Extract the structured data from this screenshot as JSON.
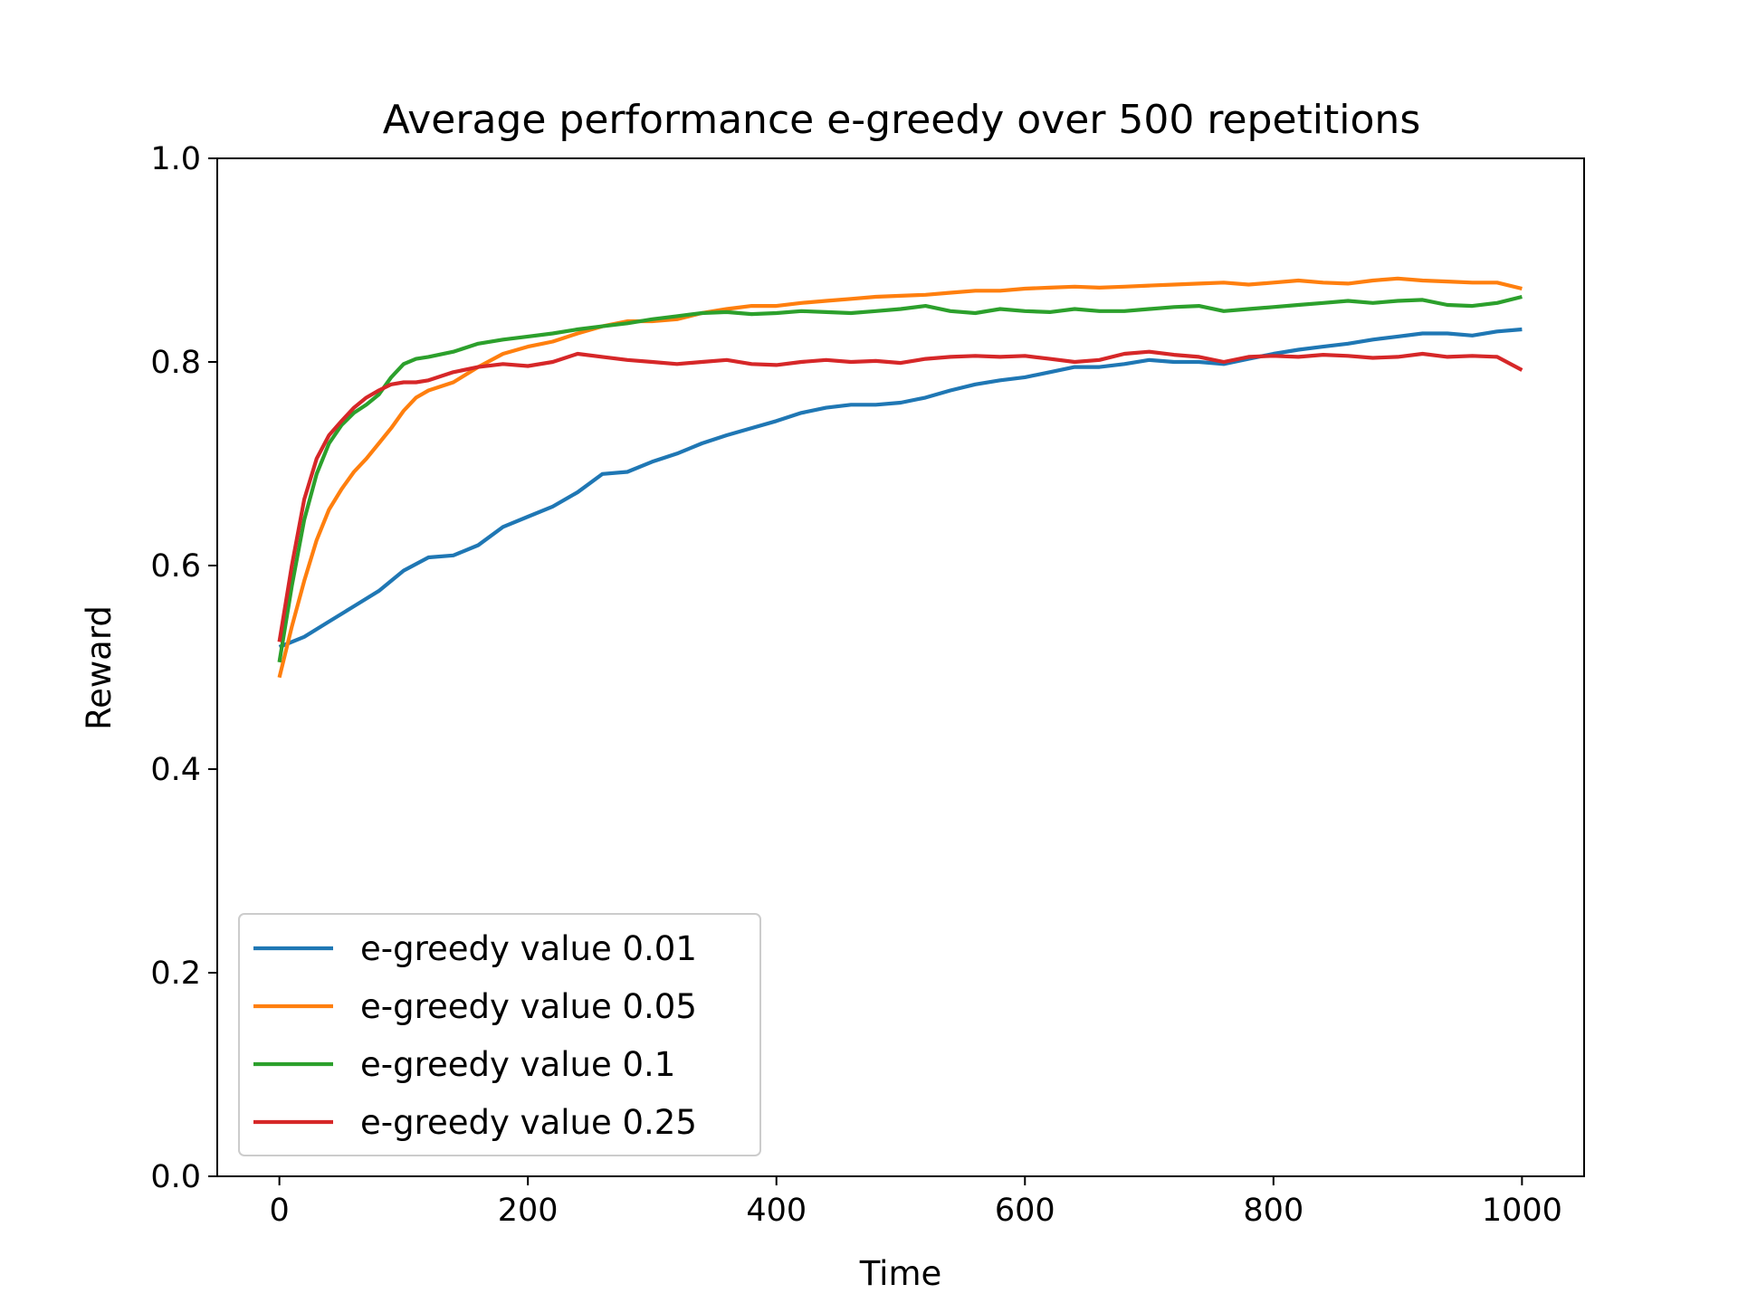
{
  "chart_data": {
    "type": "line",
    "title": "Average performance e-greedy over 500 repetitions",
    "xlabel": "Time",
    "ylabel": "Reward",
    "xlim": [
      -50,
      1050
    ],
    "ylim": [
      0.0,
      1.0
    ],
    "xticks": [
      0,
      200,
      400,
      600,
      800,
      1000
    ],
    "yticks": [
      0.0,
      0.2,
      0.4,
      0.6,
      0.8,
      1.0
    ],
    "xtick_labels": [
      "0",
      "200",
      "400",
      "600",
      "800",
      "1000"
    ],
    "ytick_labels": [
      "0.0",
      "0.2",
      "0.4",
      "0.6",
      "0.8",
      "1.0"
    ],
    "grid": false,
    "legend_position": "lower-left",
    "series": [
      {
        "name": "e-greedy value 0.01",
        "color": "#1f77b4",
        "x": [
          0,
          20,
          40,
          60,
          80,
          100,
          120,
          140,
          160,
          180,
          200,
          220,
          240,
          260,
          280,
          300,
          320,
          340,
          360,
          380,
          400,
          420,
          440,
          460,
          480,
          500,
          520,
          540,
          560,
          580,
          600,
          620,
          640,
          660,
          680,
          700,
          720,
          740,
          760,
          780,
          800,
          820,
          840,
          860,
          880,
          900,
          920,
          940,
          960,
          980,
          1000
        ],
        "y": [
          0.52,
          0.53,
          0.545,
          0.56,
          0.575,
          0.595,
          0.608,
          0.61,
          0.62,
          0.638,
          0.648,
          0.658,
          0.672,
          0.69,
          0.692,
          0.702,
          0.71,
          0.72,
          0.728,
          0.735,
          0.742,
          0.75,
          0.755,
          0.758,
          0.758,
          0.76,
          0.765,
          0.772,
          0.778,
          0.782,
          0.785,
          0.79,
          0.795,
          0.795,
          0.798,
          0.802,
          0.8,
          0.8,
          0.798,
          0.803,
          0.808,
          0.812,
          0.815,
          0.818,
          0.822,
          0.825,
          0.828,
          0.828,
          0.826,
          0.83,
          0.832
        ]
      },
      {
        "name": "e-greedy value 0.05",
        "color": "#ff7f0e",
        "x": [
          0,
          10,
          20,
          30,
          40,
          50,
          60,
          70,
          80,
          90,
          100,
          110,
          120,
          140,
          160,
          180,
          200,
          220,
          240,
          260,
          280,
          300,
          320,
          340,
          360,
          380,
          400,
          420,
          440,
          460,
          480,
          500,
          520,
          540,
          560,
          580,
          600,
          620,
          640,
          660,
          680,
          700,
          720,
          740,
          760,
          780,
          800,
          820,
          840,
          860,
          880,
          900,
          920,
          940,
          960,
          980,
          1000
        ],
        "y": [
          0.49,
          0.54,
          0.585,
          0.625,
          0.655,
          0.675,
          0.692,
          0.705,
          0.72,
          0.735,
          0.752,
          0.765,
          0.772,
          0.78,
          0.795,
          0.808,
          0.815,
          0.82,
          0.828,
          0.835,
          0.84,
          0.84,
          0.842,
          0.848,
          0.852,
          0.855,
          0.855,
          0.858,
          0.86,
          0.862,
          0.864,
          0.865,
          0.866,
          0.868,
          0.87,
          0.87,
          0.872,
          0.873,
          0.874,
          0.873,
          0.874,
          0.875,
          0.876,
          0.877,
          0.878,
          0.876,
          0.878,
          0.88,
          0.878,
          0.877,
          0.88,
          0.882,
          0.88,
          0.879,
          0.878,
          0.878,
          0.872
        ]
      },
      {
        "name": "e-greedy value 0.1",
        "color": "#2ca02c",
        "x": [
          0,
          10,
          20,
          30,
          40,
          50,
          60,
          70,
          80,
          90,
          100,
          110,
          120,
          140,
          160,
          180,
          200,
          220,
          240,
          260,
          280,
          300,
          320,
          340,
          360,
          380,
          400,
          420,
          440,
          460,
          480,
          500,
          520,
          540,
          560,
          580,
          600,
          620,
          640,
          660,
          680,
          700,
          720,
          740,
          760,
          780,
          800,
          820,
          840,
          860,
          880,
          900,
          920,
          940,
          960,
          980,
          1000
        ],
        "y": [
          0.505,
          0.58,
          0.645,
          0.69,
          0.72,
          0.738,
          0.75,
          0.758,
          0.768,
          0.785,
          0.798,
          0.803,
          0.805,
          0.81,
          0.818,
          0.822,
          0.825,
          0.828,
          0.832,
          0.835,
          0.838,
          0.842,
          0.845,
          0.848,
          0.849,
          0.847,
          0.848,
          0.85,
          0.849,
          0.848,
          0.85,
          0.852,
          0.855,
          0.85,
          0.848,
          0.852,
          0.85,
          0.849,
          0.852,
          0.85,
          0.85,
          0.852,
          0.854,
          0.855,
          0.85,
          0.852,
          0.854,
          0.856,
          0.858,
          0.86,
          0.858,
          0.86,
          0.861,
          0.856,
          0.855,
          0.858,
          0.864
        ]
      },
      {
        "name": "e-greedy value 0.25",
        "color": "#d62728",
        "x": [
          0,
          10,
          20,
          30,
          40,
          50,
          60,
          70,
          80,
          90,
          100,
          110,
          120,
          140,
          160,
          180,
          200,
          220,
          240,
          260,
          280,
          300,
          320,
          340,
          360,
          380,
          400,
          420,
          440,
          460,
          480,
          500,
          520,
          540,
          560,
          580,
          600,
          620,
          640,
          660,
          680,
          700,
          720,
          740,
          760,
          780,
          800,
          820,
          840,
          860,
          880,
          900,
          920,
          940,
          960,
          980,
          1000
        ],
        "y": [
          0.525,
          0.6,
          0.665,
          0.705,
          0.728,
          0.742,
          0.755,
          0.765,
          0.772,
          0.778,
          0.78,
          0.78,
          0.782,
          0.79,
          0.795,
          0.798,
          0.796,
          0.8,
          0.808,
          0.805,
          0.802,
          0.8,
          0.798,
          0.8,
          0.802,
          0.798,
          0.797,
          0.8,
          0.802,
          0.8,
          0.801,
          0.799,
          0.803,
          0.805,
          0.806,
          0.805,
          0.806,
          0.803,
          0.8,
          0.802,
          0.808,
          0.81,
          0.807,
          0.805,
          0.8,
          0.805,
          0.806,
          0.805,
          0.807,
          0.806,
          0.804,
          0.805,
          0.808,
          0.805,
          0.806,
          0.805,
          0.792
        ]
      }
    ]
  }
}
